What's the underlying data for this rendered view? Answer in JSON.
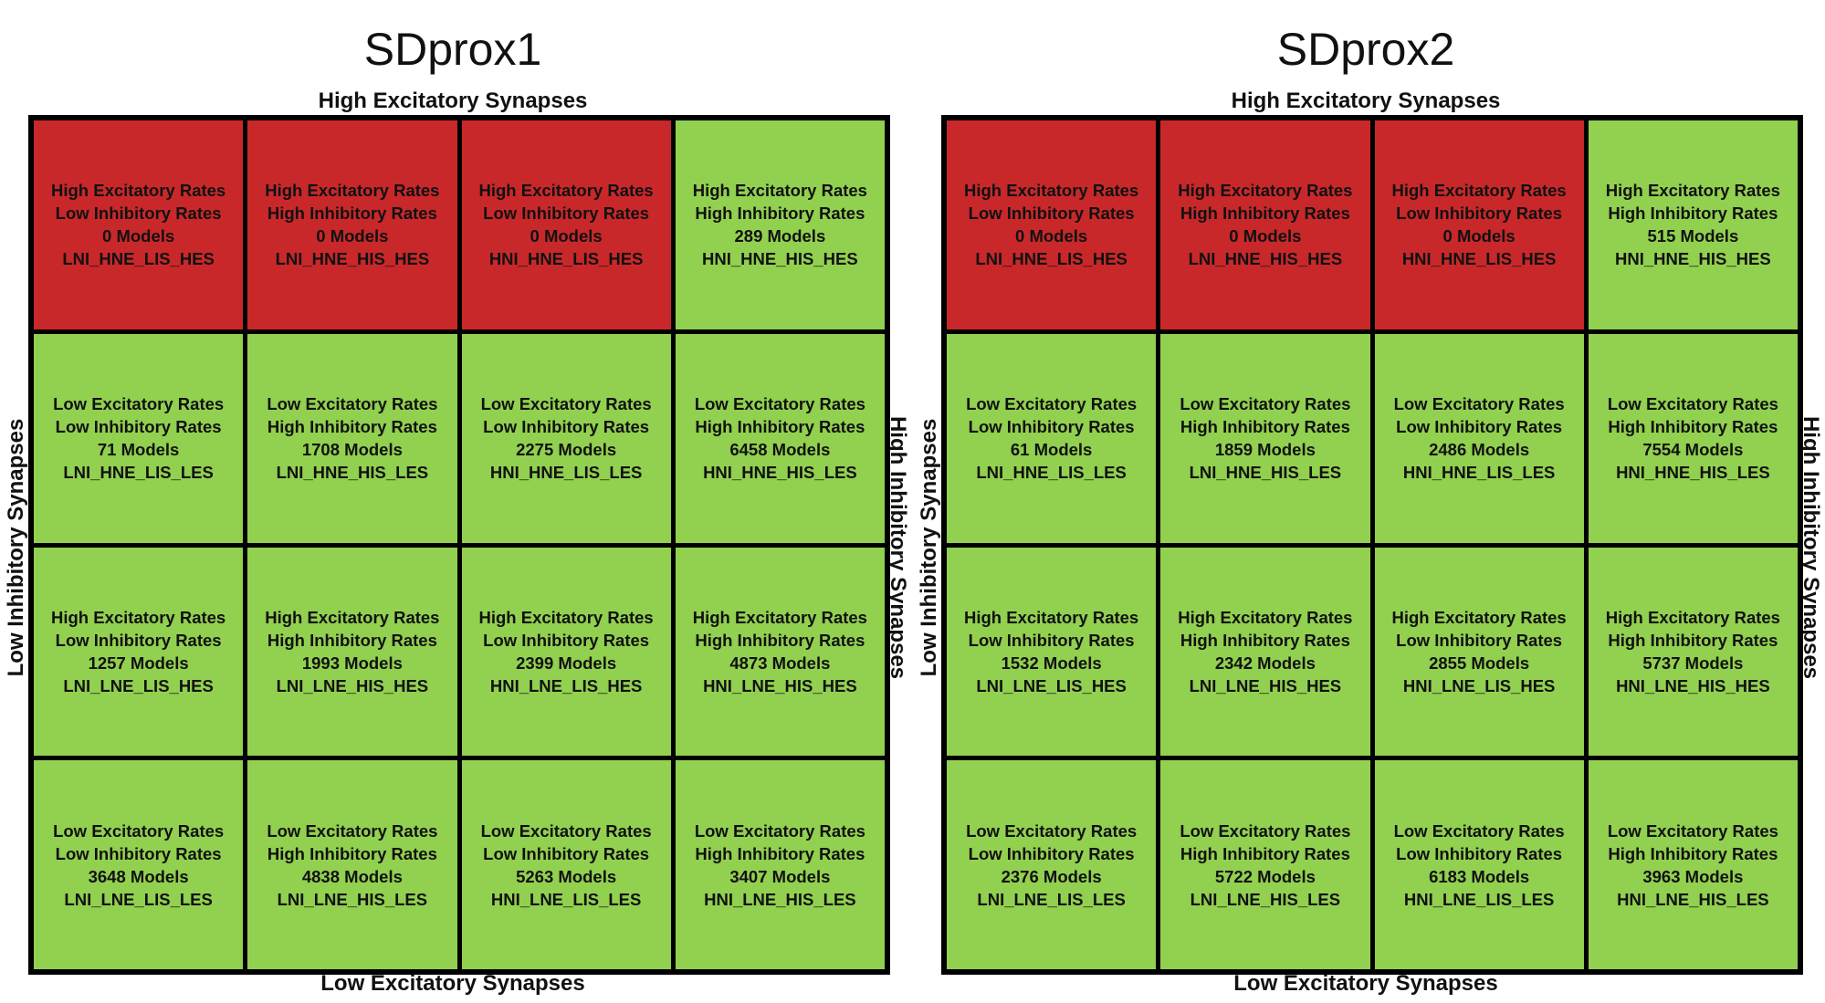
{
  "colors": {
    "red": "#c8282a",
    "green": "#92d050"
  },
  "panels": [
    {
      "title": "SDprox1",
      "top_label": "High Excitatory Synapses",
      "bottom_label": "Low Excitatory Synapses",
      "left_label": "Low Inhibitory Synapses",
      "right_label": "High Inhibitory Synapses",
      "cells": [
        {
          "l1": "High Excitatory Rates",
          "l2": "Low Inhibitory Rates",
          "l3": "0 Models",
          "l4": "LNI_HNE_LIS_HES",
          "color": "red"
        },
        {
          "l1": "High Excitatory Rates",
          "l2": "High Inhibitory Rates",
          "l3": "0 Models",
          "l4": "LNI_HNE_HIS_HES",
          "color": "red"
        },
        {
          "l1": "High Excitatory Rates",
          "l2": "Low Inhibitory Rates",
          "l3": "0 Models",
          "l4": "HNI_HNE_LIS_HES",
          "color": "red"
        },
        {
          "l1": "High Excitatory Rates",
          "l2": "High Inhibitory Rates",
          "l3": "289 Models",
          "l4": "HNI_HNE_HIS_HES",
          "color": "green"
        },
        {
          "l1": "Low Excitatory Rates",
          "l2": "Low Inhibitory Rates",
          "l3": "71 Models",
          "l4": "LNI_HNE_LIS_LES",
          "color": "green"
        },
        {
          "l1": "Low Excitatory Rates",
          "l2": "High Inhibitory Rates",
          "l3": "1708 Models",
          "l4": "LNI_HNE_HIS_LES",
          "color": "green"
        },
        {
          "l1": "Low Excitatory Rates",
          "l2": "Low Inhibitory Rates",
          "l3": "2275 Models",
          "l4": "HNI_HNE_LIS_LES",
          "color": "green"
        },
        {
          "l1": "Low Excitatory Rates",
          "l2": "High Inhibitory Rates",
          "l3": "6458 Models",
          "l4": "HNI_HNE_HIS_LES",
          "color": "green"
        },
        {
          "l1": "High Excitatory Rates",
          "l2": "Low Inhibitory Rates",
          "l3": "1257 Models",
          "l4": "LNI_LNE_LIS_HES",
          "color": "green"
        },
        {
          "l1": "High Excitatory Rates",
          "l2": "High Inhibitory Rates",
          "l3": "1993 Models",
          "l4": "LNI_LNE_HIS_HES",
          "color": "green"
        },
        {
          "l1": "High Excitatory Rates",
          "l2": "Low Inhibitory Rates",
          "l3": "2399 Models",
          "l4": "HNI_LNE_LIS_HES",
          "color": "green"
        },
        {
          "l1": "High Excitatory Rates",
          "l2": "High Inhibitory Rates",
          "l3": "4873 Models",
          "l4": "HNI_LNE_HIS_HES",
          "color": "green"
        },
        {
          "l1": "Low Excitatory Rates",
          "l2": "Low Inhibitory Rates",
          "l3": "3648 Models",
          "l4": "LNI_LNE_LIS_LES",
          "color": "green"
        },
        {
          "l1": "Low Excitatory Rates",
          "l2": "High Inhibitory Rates",
          "l3": "4838 Models",
          "l4": "LNI_LNE_HIS_LES",
          "color": "green"
        },
        {
          "l1": "Low Excitatory Rates",
          "l2": "Low Inhibitory Rates",
          "l3": "5263 Models",
          "l4": "HNI_LNE_LIS_LES",
          "color": "green"
        },
        {
          "l1": "Low Excitatory Rates",
          "l2": "High Inhibitory Rates",
          "l3": "3407 Models",
          "l4": "HNI_LNE_HIS_LES",
          "color": "green"
        }
      ]
    },
    {
      "title": "SDprox2",
      "top_label": "High Excitatory Synapses",
      "bottom_label": "Low Excitatory Synapses",
      "left_label": "Low Inhibitory Synapses",
      "right_label": "High Inhibitory Synapses",
      "cells": [
        {
          "l1": "High Excitatory Rates",
          "l2": "Low Inhibitory Rates",
          "l3": "0 Models",
          "l4": "LNI_HNE_LIS_HES",
          "color": "red"
        },
        {
          "l1": "High Excitatory Rates",
          "l2": "High Inhibitory Rates",
          "l3": "0 Models",
          "l4": "LNI_HNE_HIS_HES",
          "color": "red"
        },
        {
          "l1": "High Excitatory Rates",
          "l2": "Low Inhibitory Rates",
          "l3": "0 Models",
          "l4": "HNI_HNE_LIS_HES",
          "color": "red"
        },
        {
          "l1": "High Excitatory Rates",
          "l2": "High Inhibitory Rates",
          "l3": "515 Models",
          "l4": "HNI_HNE_HIS_HES",
          "color": "green"
        },
        {
          "l1": "Low Excitatory Rates",
          "l2": "Low Inhibitory Rates",
          "l3": "61 Models",
          "l4": "LNI_HNE_LIS_LES",
          "color": "green"
        },
        {
          "l1": "Low Excitatory Rates",
          "l2": "High Inhibitory Rates",
          "l3": "1859 Models",
          "l4": "LNI_HNE_HIS_LES",
          "color": "green"
        },
        {
          "l1": "Low Excitatory Rates",
          "l2": "Low Inhibitory Rates",
          "l3": "2486 Models",
          "l4": "HNI_HNE_LIS_LES",
          "color": "green"
        },
        {
          "l1": "Low Excitatory Rates",
          "l2": "High Inhibitory Rates",
          "l3": "7554 Models",
          "l4": "HNI_HNE_HIS_LES",
          "color": "green"
        },
        {
          "l1": "High Excitatory Rates",
          "l2": "Low Inhibitory Rates",
          "l3": "1532 Models",
          "l4": "LNI_LNE_LIS_HES",
          "color": "green"
        },
        {
          "l1": "High Excitatory Rates",
          "l2": "High Inhibitory Rates",
          "l3": "2342 Models",
          "l4": "LNI_LNE_HIS_HES",
          "color": "green"
        },
        {
          "l1": "High Excitatory Rates",
          "l2": "Low Inhibitory Rates",
          "l3": "2855 Models",
          "l4": "HNI_LNE_LIS_HES",
          "color": "green"
        },
        {
          "l1": "High Excitatory Rates",
          "l2": "High Inhibitory Rates",
          "l3": "5737 Models",
          "l4": "HNI_LNE_HIS_HES",
          "color": "green"
        },
        {
          "l1": "Low Excitatory Rates",
          "l2": "Low Inhibitory Rates",
          "l3": "2376 Models",
          "l4": "LNI_LNE_LIS_LES",
          "color": "green"
        },
        {
          "l1": "Low Excitatory Rates",
          "l2": "High Inhibitory Rates",
          "l3": "5722 Models",
          "l4": "LNI_LNE_HIS_LES",
          "color": "green"
        },
        {
          "l1": "Low Excitatory Rates",
          "l2": "Low Inhibitory Rates",
          "l3": "6183 Models",
          "l4": "HNI_LNE_LIS_LES",
          "color": "green"
        },
        {
          "l1": "Low Excitatory Rates",
          "l2": "High Inhibitory Rates",
          "l3": "3963 Models",
          "l4": "HNI_LNE_HIS_LES",
          "color": "green"
        }
      ]
    }
  ]
}
